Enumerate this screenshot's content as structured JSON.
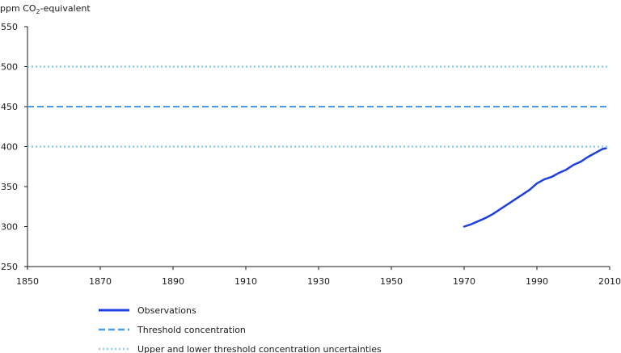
{
  "chart_data": {
    "type": "line",
    "title": "",
    "ylabel": "ppm CO₂-equivalent",
    "ylabel_parts": {
      "pre": "ppm CO",
      "sub": "2",
      "post": "-equivalent"
    },
    "xlabel": "",
    "xlim": [
      1850,
      2010
    ],
    "ylim": [
      250,
      550
    ],
    "xticks": [
      1850,
      1870,
      1890,
      1910,
      1930,
      1950,
      1970,
      1990,
      2010
    ],
    "yticks": [
      250,
      300,
      350,
      400,
      450,
      500,
      550
    ],
    "grid": false,
    "legend_position": "bottom",
    "series": [
      {
        "name": "Observations",
        "style": "solid",
        "color": "#1f3fe0",
        "x": [
          1970,
          1972,
          1974,
          1976,
          1978,
          1980,
          1982,
          1984,
          1986,
          1988,
          1990,
          1992,
          1994,
          1996,
          1998,
          2000,
          2002,
          2004,
          2006,
          2008,
          2009
        ],
        "y": [
          300,
          303,
          307,
          311,
          316,
          322,
          328,
          334,
          340,
          346,
          354,
          359,
          362,
          367,
          371,
          377,
          381,
          387,
          392,
          397,
          398
        ]
      },
      {
        "name": "Threshold concentration",
        "style": "dashed",
        "color": "#4a9be8",
        "x": [
          1850,
          2010
        ],
        "y": [
          450,
          450
        ]
      },
      {
        "name": "Upper and lower threshold concentration uncertainties",
        "style": "dotted",
        "color": "#8fcbef",
        "x": [
          1850,
          2010
        ],
        "y": [
          500,
          500
        ],
        "lower_y": [
          400,
          400
        ]
      }
    ]
  }
}
